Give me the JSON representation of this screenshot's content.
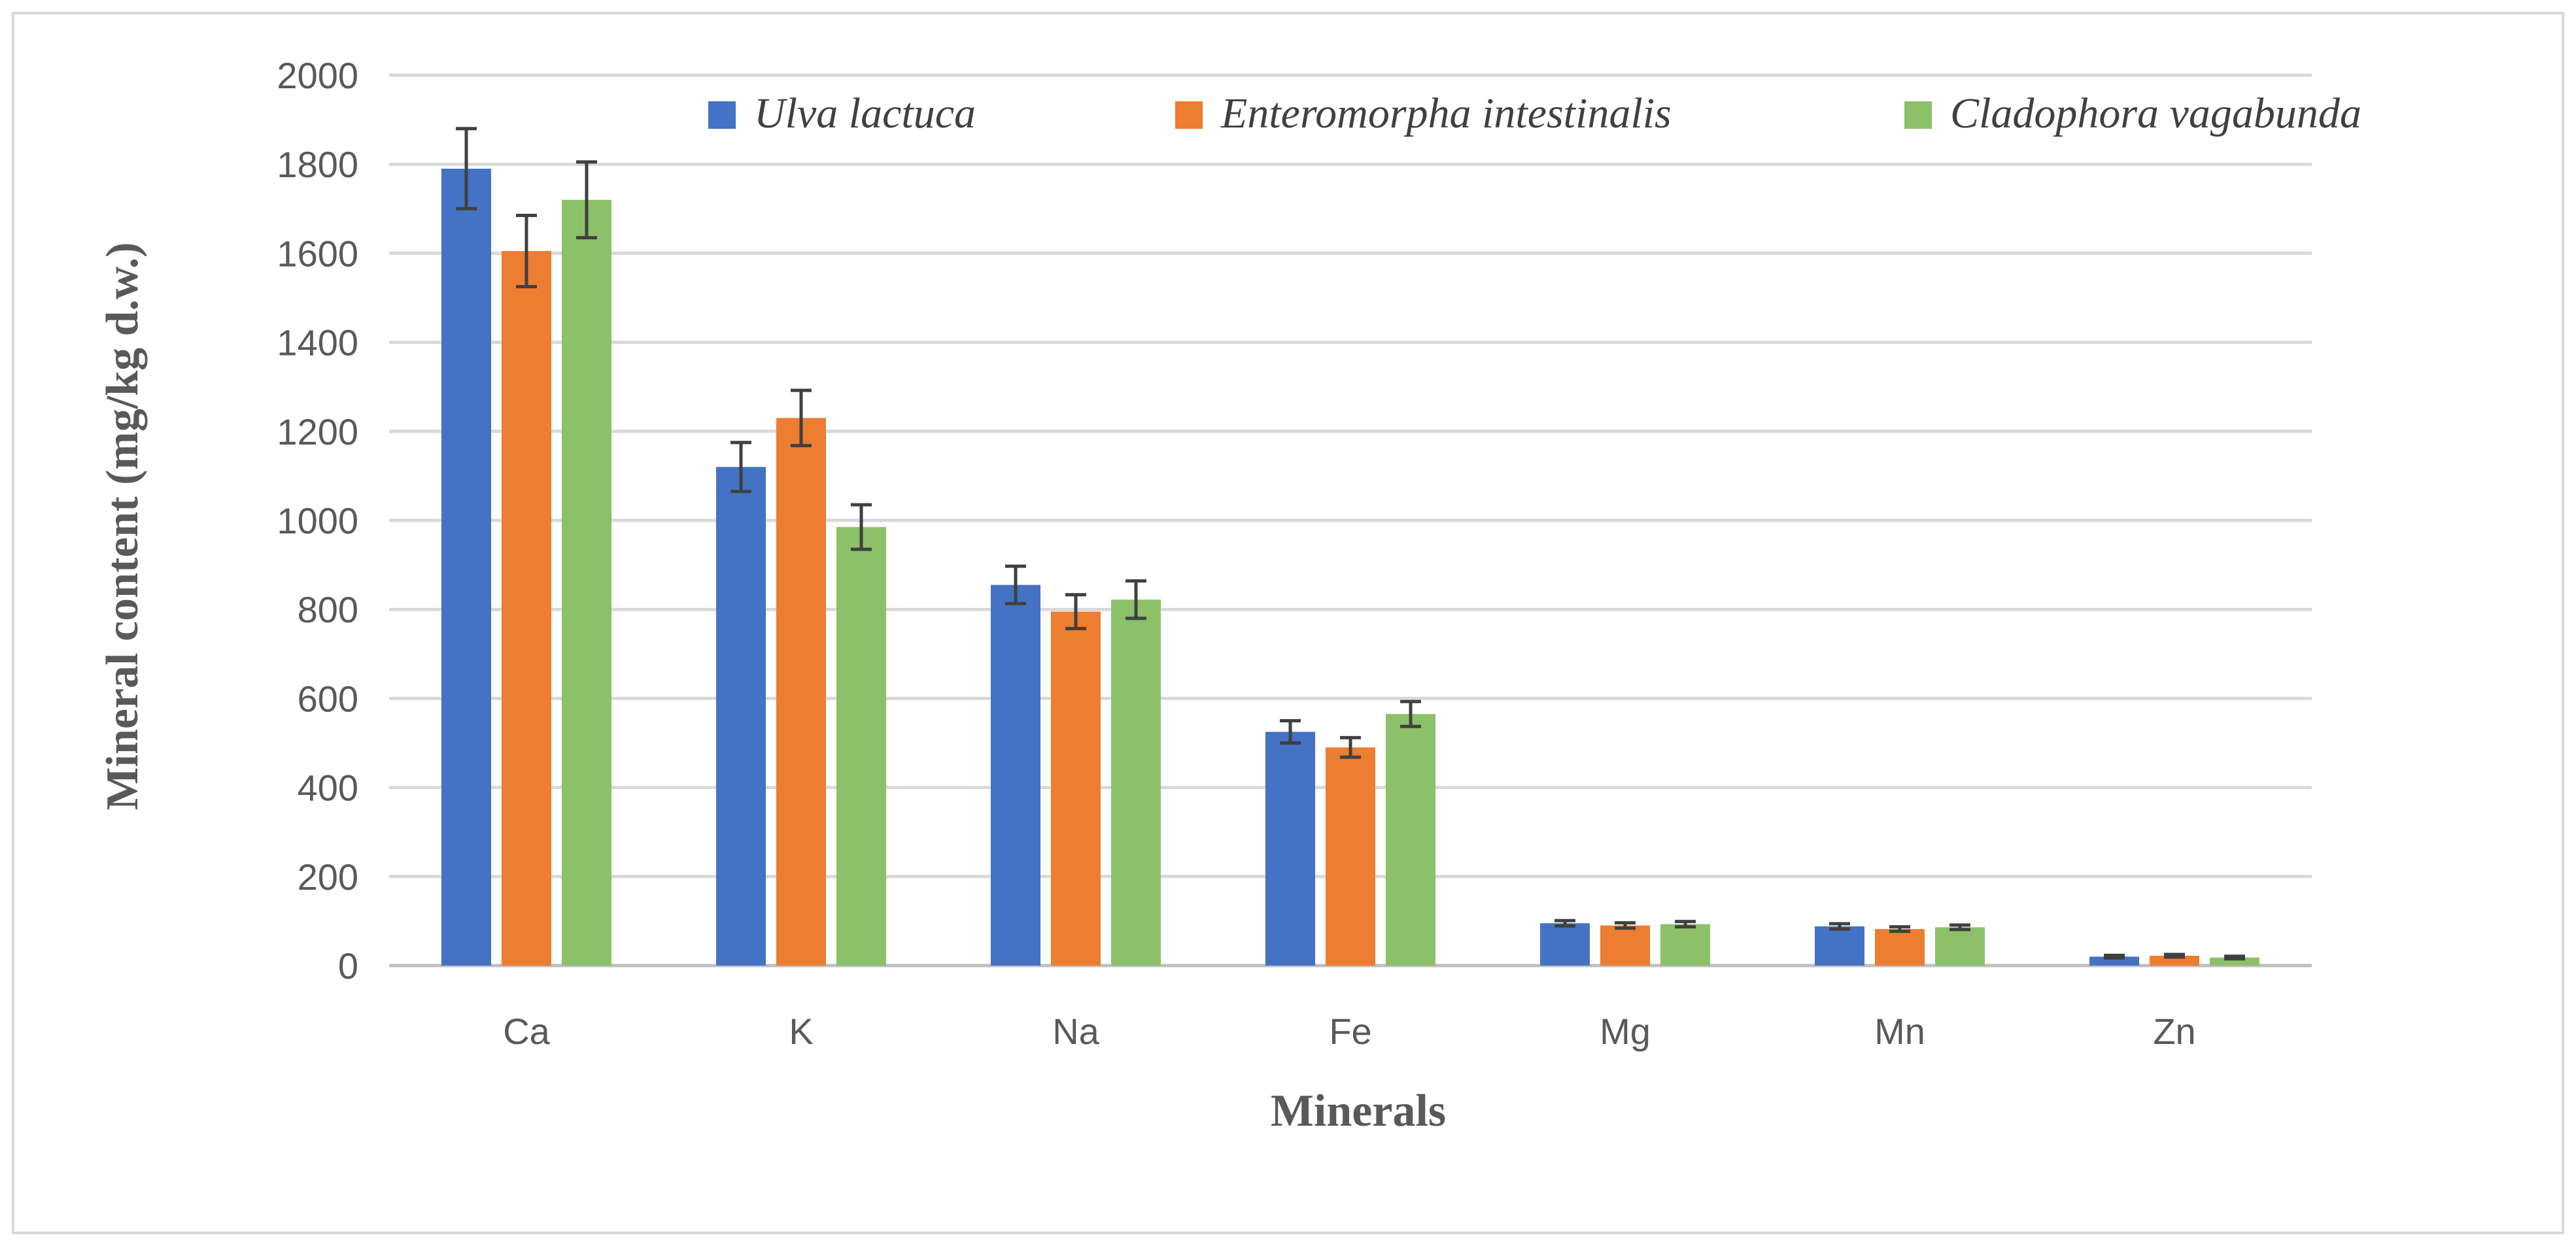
{
  "chart_data": {
    "type": "bar",
    "title": "",
    "xlabel": "Minerals",
    "ylabel": "Mineral content (mg/kg d.w.)",
    "ylim": [
      0,
      2000
    ],
    "yticks": [
      0,
      200,
      400,
      600,
      800,
      1000,
      1200,
      1400,
      1600,
      1800,
      2000
    ],
    "grid": true,
    "legend_position": "top",
    "categories": [
      "Ca",
      "K",
      "Na",
      "Fe",
      "Mg",
      "Mn",
      "Zn"
    ],
    "series": [
      {
        "name": "Ulva lactuca",
        "color": "#4472c4",
        "values": [
          1790,
          1120,
          855,
          525,
          95,
          88,
          20
        ],
        "errors": [
          90,
          55,
          42,
          25,
          6,
          6,
          3
        ]
      },
      {
        "name": "Enteromorpha intestinalis",
        "color": "#ed7d31",
        "values": [
          1605,
          1230,
          795,
          490,
          90,
          82,
          22
        ],
        "errors": [
          80,
          62,
          38,
          22,
          6,
          5,
          3
        ]
      },
      {
        "name": "Cladophora vagabunda",
        "color": "#8cc16a",
        "values": [
          1720,
          985,
          822,
          565,
          93,
          86,
          18
        ],
        "errors": [
          85,
          50,
          42,
          28,
          6,
          5,
          3
        ]
      }
    ]
  }
}
